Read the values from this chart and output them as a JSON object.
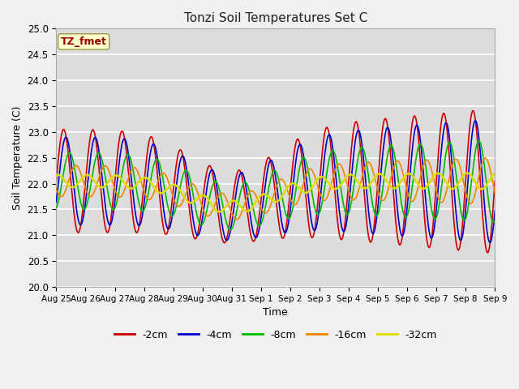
{
  "title": "Tonzi Soil Temperatures Set C",
  "xlabel": "Time",
  "ylabel": "Soil Temperature (C)",
  "annotation": "TZ_fmet",
  "ylim": [
    20.0,
    25.0
  ],
  "yticks": [
    20.0,
    20.5,
    21.0,
    21.5,
    22.0,
    22.5,
    23.0,
    23.5,
    24.0,
    24.5,
    25.0
  ],
  "xtick_labels": [
    "Aug 25",
    "Aug 26",
    "Aug 27",
    "Aug 28",
    "Aug 29",
    "Aug 30",
    "Aug 31",
    "Sep 1",
    "Sep 2",
    "Sep 3",
    "Sep 4",
    "Sep 5",
    "Sep 6",
    "Sep 7",
    "Sep 8",
    "Sep 9"
  ],
  "colors": {
    "-2cm": "#cc0000",
    "-4cm": "#0000cc",
    "-8cm": "#00bb00",
    "-16cm": "#ee8800",
    "-32cm": "#dddd00"
  },
  "lw": {
    "-2cm": 1.2,
    "-4cm": 1.2,
    "-8cm": 1.2,
    "-16cm": 1.2,
    "-32cm": 1.8
  },
  "bg_color": "#dcdcdc",
  "plot_bg": "#dcdcdc",
  "fig_bg": "#f0f0f0",
  "grid_color": "#ffffff",
  "legend_labels": [
    "-2cm",
    "-4cm",
    "-8cm",
    "-16cm",
    "-32cm"
  ]
}
